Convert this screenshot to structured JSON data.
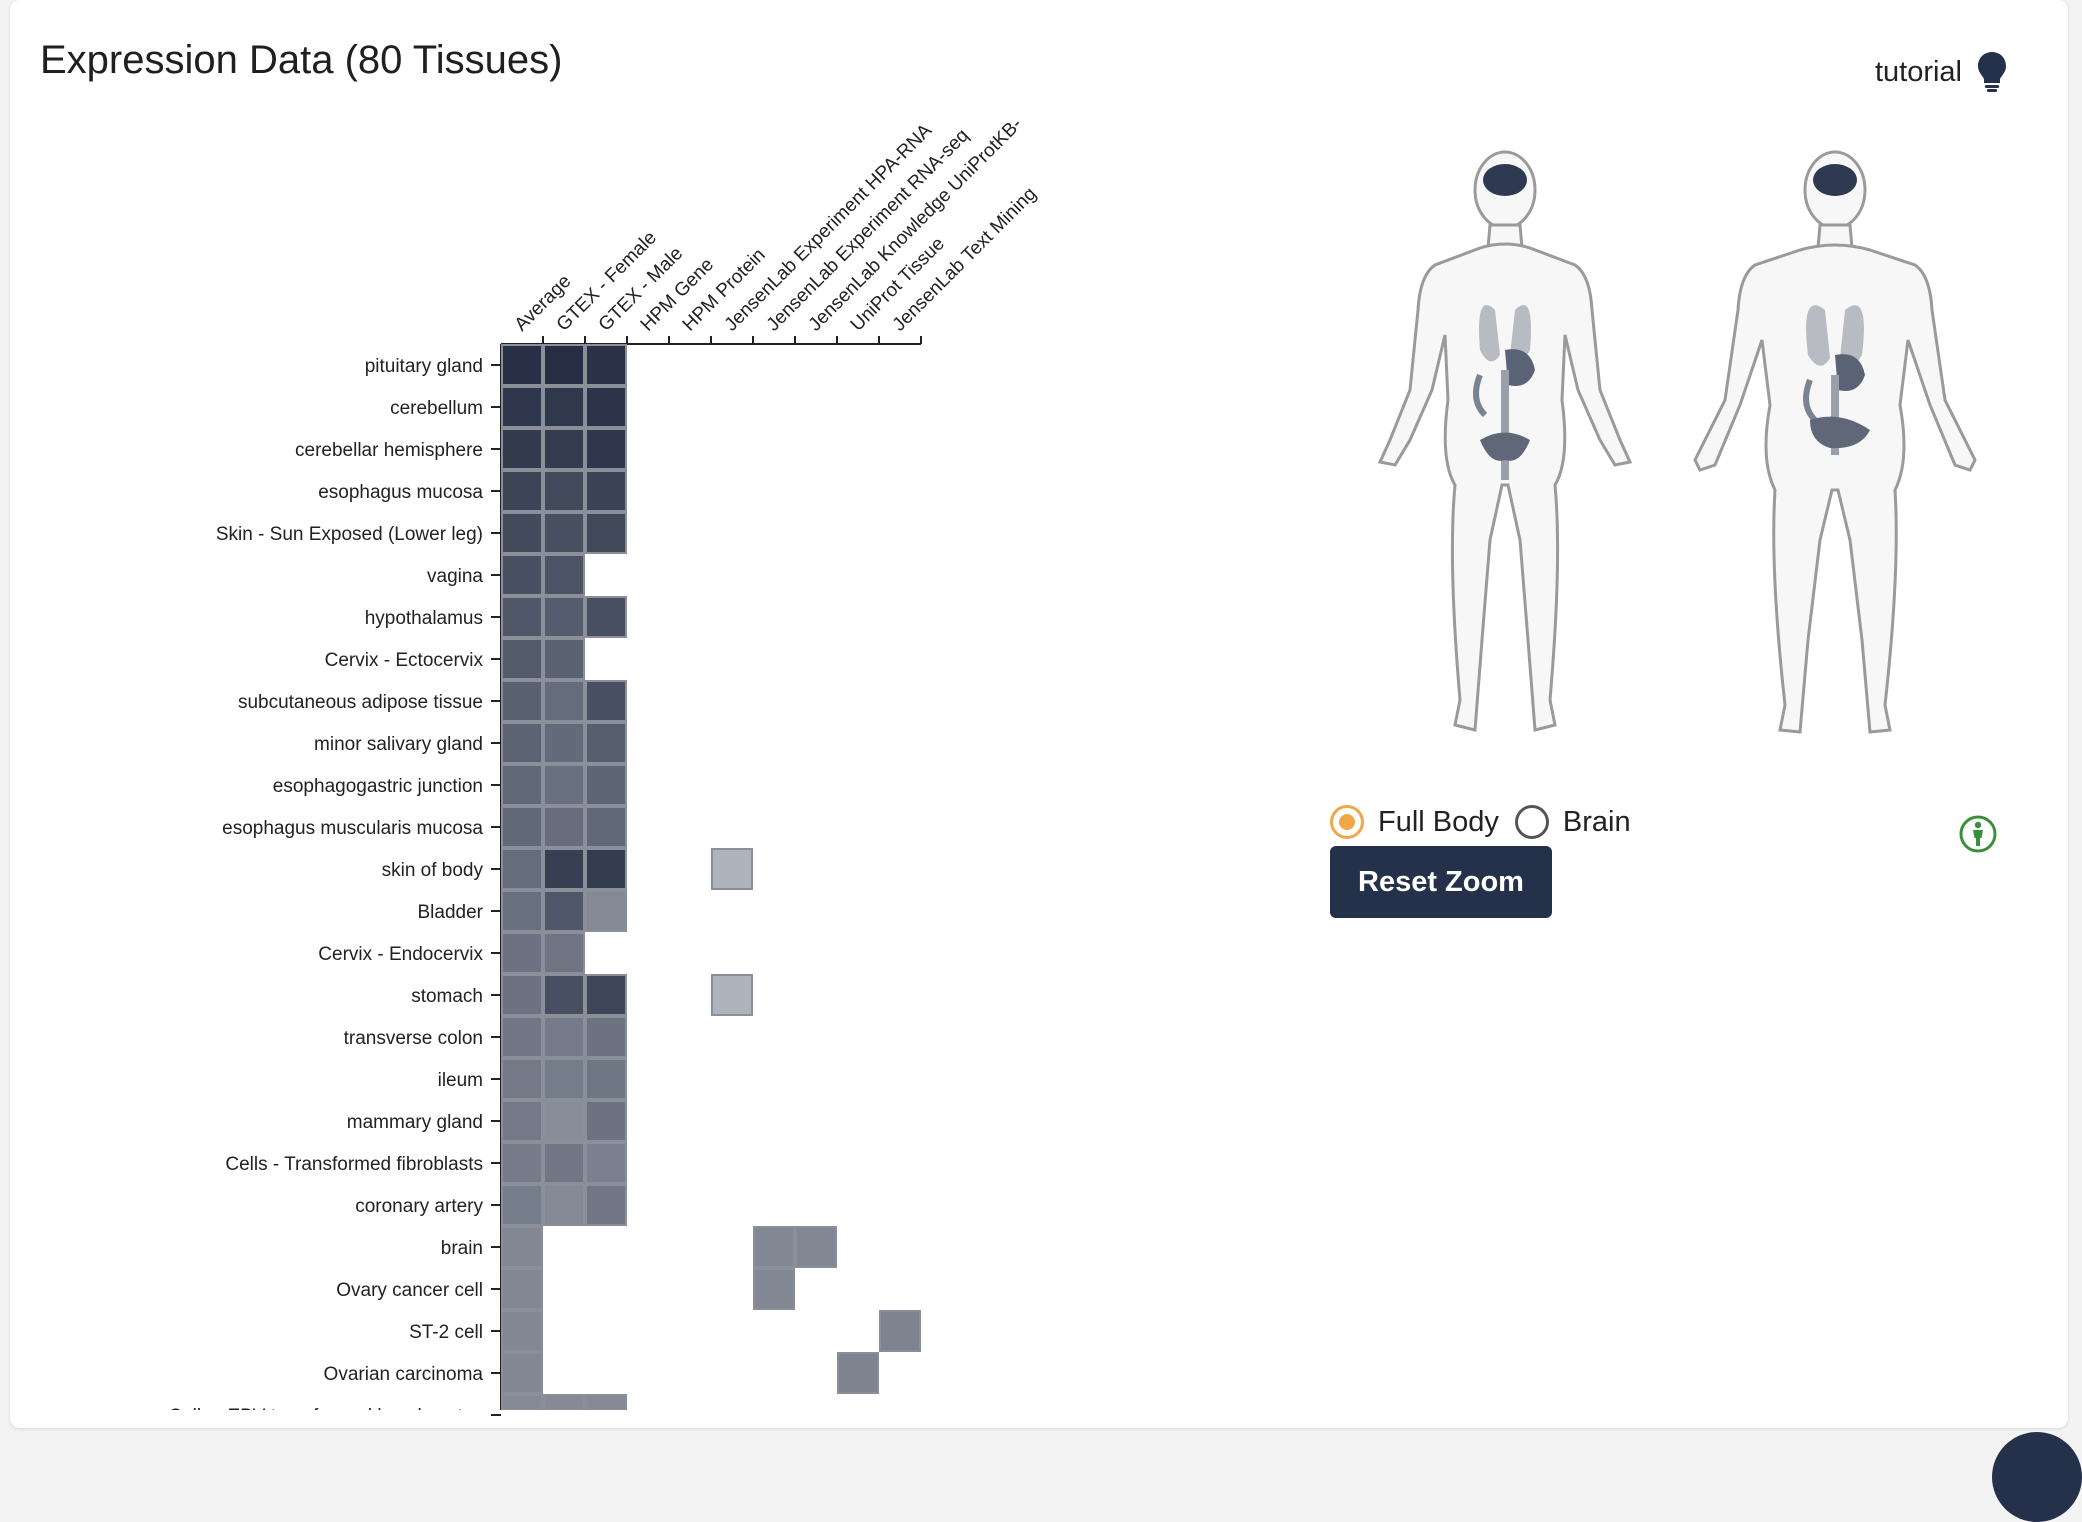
{
  "page": {
    "title": "Expression Data (80 Tissues)",
    "tutorial_label": "tutorial",
    "icons": {
      "tutorial": "lightbulb-icon",
      "info": "person-info-icon"
    }
  },
  "body_map": {
    "radio_options": [
      "Full Body",
      "Brain"
    ],
    "selected": "Full Body",
    "reset_label": "Reset Zoom"
  },
  "colors": {
    "dark_navy": "#25304a",
    "accent_orange": "#f0a74a",
    "info_green": "#3a8f3a"
  },
  "chart_data": {
    "type": "heatmap",
    "title": "",
    "columns": [
      "Average",
      "GTEX - Female",
      "GTEX - Male",
      "HPM Gene",
      "HPM Protein",
      "JensenLab Experiment HPA-RNA",
      "JensenLab Experiment RNA-seq",
      "JensenLab Knowledge UniProtKB-",
      "UniProt Tissue",
      "JensenLab Text Mining"
    ],
    "rows": [
      "pituitary gland",
      "cerebellum",
      "cerebellar hemisphere",
      "esophagus mucosa",
      "Skin - Sun Exposed (Lower leg)",
      "vagina",
      "hypothalamus",
      "Cervix - Ectocervix",
      "subcutaneous adipose tissue",
      "minor salivary gland",
      "esophagogastric junction",
      "esophagus muscularis mucosa",
      "skin of body",
      "Bladder",
      "Cervix - Endocervix",
      "stomach",
      "transverse colon",
      "ileum",
      "mammary gland",
      "Cells - Transformed fibroblasts",
      "coronary artery",
      "brain",
      "Ovary cancer cell",
      "ST-2 cell",
      "Ovarian carcinoma",
      "Cells - EBV-transformed lymphocytes"
    ],
    "values": [
      [
        0.97,
        0.98,
        0.96,
        null,
        null,
        null,
        null,
        null,
        null,
        null
      ],
      [
        0.93,
        0.92,
        0.95,
        null,
        null,
        null,
        null,
        null,
        null,
        null
      ],
      [
        0.91,
        0.9,
        0.93,
        null,
        null,
        null,
        null,
        null,
        null,
        null
      ],
      [
        0.85,
        0.82,
        0.86,
        null,
        null,
        null,
        null,
        null,
        null,
        null
      ],
      [
        0.82,
        0.78,
        0.83,
        null,
        null,
        null,
        null,
        null,
        null,
        null
      ],
      [
        0.78,
        0.76,
        null,
        null,
        null,
        null,
        null,
        null,
        null,
        null
      ],
      [
        0.74,
        0.71,
        0.79,
        null,
        null,
        null,
        null,
        null,
        null,
        null
      ],
      [
        0.72,
        0.68,
        null,
        null,
        null,
        null,
        null,
        null,
        null,
        null
      ],
      [
        0.69,
        0.62,
        0.78,
        null,
        null,
        null,
        null,
        null,
        null,
        null
      ],
      [
        0.67,
        0.63,
        0.7,
        null,
        null,
        null,
        null,
        null,
        null,
        null
      ],
      [
        0.65,
        0.6,
        0.66,
        null,
        null,
        null,
        null,
        null,
        null,
        null
      ],
      [
        0.64,
        0.61,
        0.65,
        null,
        null,
        null,
        null,
        null,
        null,
        null
      ],
      [
        0.62,
        0.88,
        0.9,
        null,
        null,
        0.2,
        null,
        null,
        null,
        null
      ],
      [
        0.6,
        0.74,
        0.45,
        null,
        null,
        null,
        null,
        null,
        null,
        null
      ],
      [
        0.58,
        0.57,
        null,
        null,
        null,
        null,
        null,
        null,
        null,
        null
      ],
      [
        0.58,
        0.79,
        0.84,
        null,
        null,
        0.2,
        null,
        null,
        null,
        null
      ],
      [
        0.55,
        0.53,
        0.58,
        null,
        null,
        null,
        null,
        null,
        null,
        null
      ],
      [
        0.54,
        0.52,
        0.56,
        null,
        null,
        null,
        null,
        null,
        null,
        null
      ],
      [
        0.54,
        0.42,
        0.58,
        null,
        null,
        null,
        null,
        null,
        null,
        null
      ],
      [
        0.53,
        0.55,
        0.5,
        null,
        null,
        null,
        null,
        null,
        null,
        null
      ],
      [
        0.52,
        0.45,
        0.55,
        null,
        null,
        null,
        null,
        null,
        null,
        null
      ],
      [
        0.46,
        null,
        null,
        null,
        null,
        null,
        0.46,
        0.46,
        null,
        null
      ],
      [
        0.46,
        null,
        null,
        null,
        null,
        null,
        0.46,
        null,
        null,
        null
      ],
      [
        0.46,
        null,
        null,
        null,
        null,
        null,
        null,
        null,
        null,
        0.48
      ],
      [
        0.46,
        null,
        null,
        null,
        null,
        null,
        null,
        null,
        0.48,
        null
      ],
      [
        0.44,
        0.44,
        0.44,
        null,
        null,
        null,
        null,
        null,
        null,
        null
      ]
    ],
    "value_range": [
      0,
      1
    ],
    "color_low": "#d2d5da",
    "color_high": "#222b40",
    "grid": false,
    "legend": "none"
  }
}
